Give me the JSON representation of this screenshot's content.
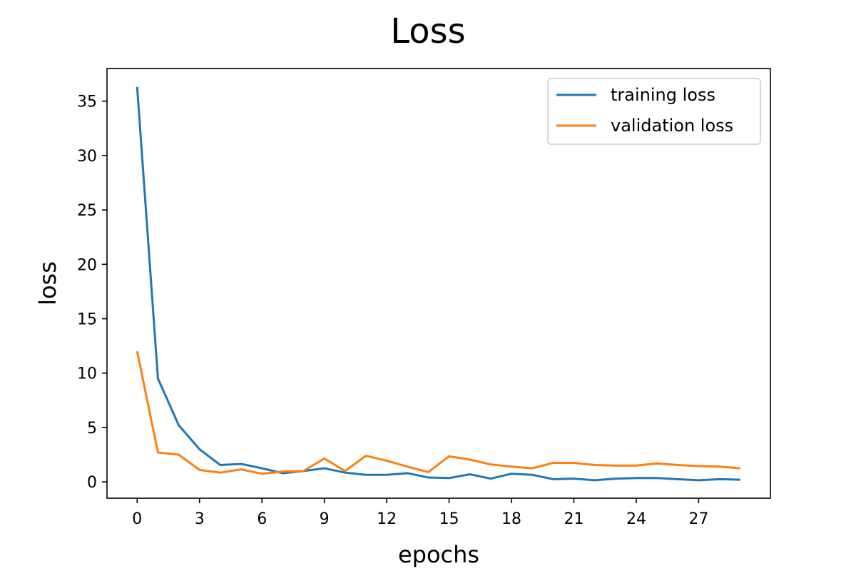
{
  "chart_data": {
    "type": "line",
    "title": "Loss",
    "xlabel": "epochs",
    "ylabel": "loss",
    "xlim": [
      -1.45,
      30.45
    ],
    "ylim": [
      -1.5,
      38
    ],
    "xticks": [
      0,
      3,
      6,
      9,
      12,
      15,
      18,
      21,
      24,
      27
    ],
    "yticks": [
      0,
      5,
      10,
      15,
      20,
      25,
      30,
      35
    ],
    "grid": false,
    "legend_position": "top-right",
    "x": [
      0,
      1,
      2,
      3,
      4,
      5,
      6,
      7,
      8,
      9,
      10,
      11,
      12,
      13,
      14,
      15,
      16,
      17,
      18,
      19,
      20,
      21,
      22,
      23,
      24,
      25,
      26,
      27,
      28,
      29
    ],
    "series": [
      {
        "name": "training loss",
        "color": "#1f77b4",
        "values": [
          36.3,
          9.5,
          5.2,
          3.0,
          1.55,
          1.65,
          1.25,
          0.8,
          1.0,
          1.25,
          0.85,
          0.65,
          0.65,
          0.8,
          0.4,
          0.35,
          0.7,
          0.3,
          0.75,
          0.65,
          0.25,
          0.3,
          0.15,
          0.3,
          0.35,
          0.35,
          0.25,
          0.15,
          0.25,
          0.2
        ]
      },
      {
        "name": "validation loss",
        "color": "#ff7f0e",
        "values": [
          12.0,
          2.7,
          2.5,
          1.1,
          0.85,
          1.15,
          0.75,
          0.95,
          1.0,
          2.15,
          1.0,
          2.4,
          1.95,
          1.4,
          0.9,
          2.35,
          2.05,
          1.6,
          1.4,
          1.25,
          1.75,
          1.75,
          1.55,
          1.5,
          1.5,
          1.7,
          1.55,
          1.45,
          1.4,
          1.25
        ]
      }
    ]
  }
}
